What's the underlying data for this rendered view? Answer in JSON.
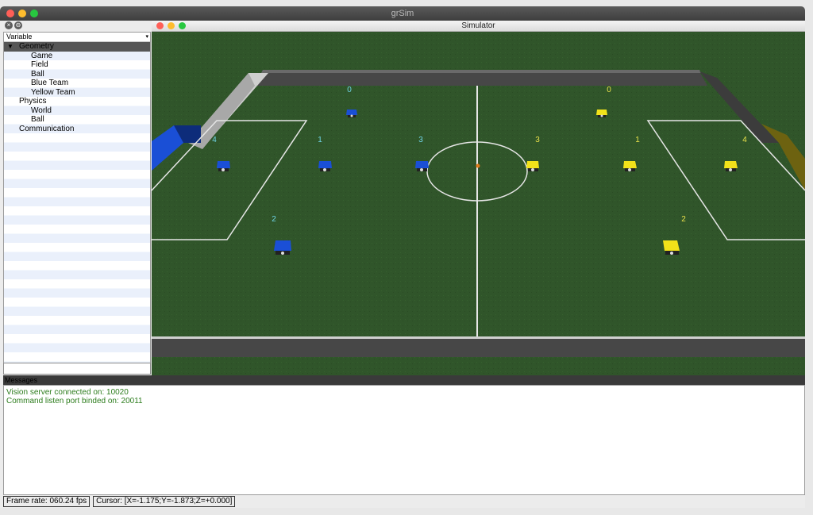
{
  "window": {
    "title": "grSim"
  },
  "tree": {
    "header": "Variable",
    "items": [
      {
        "label": "Geometry",
        "level": 0,
        "expanded": true,
        "selected": true
      },
      {
        "label": "Game",
        "level": 1
      },
      {
        "label": "Field",
        "level": 1
      },
      {
        "label": "Ball",
        "level": 1
      },
      {
        "label": "Blue Team",
        "level": 1
      },
      {
        "label": "Yellow Team",
        "level": 1
      },
      {
        "label": "Physics",
        "level": 0
      },
      {
        "label": "World",
        "level": 1
      },
      {
        "label": "Ball",
        "level": 1
      },
      {
        "label": "Communication",
        "level": 0
      }
    ]
  },
  "simulator": {
    "title": "Simulator",
    "colors": {
      "grass": "#2f5426",
      "blue": "#1a4fd6",
      "yellow": "#f2e21a",
      "wall": "#4a4a4a"
    },
    "blue_labels": [
      "0",
      "4",
      "1",
      "3",
      "2"
    ],
    "yellow_labels": [
      "0",
      "3",
      "1",
      "4",
      "2"
    ]
  },
  "messages": {
    "header": "Messages",
    "lines": [
      "Vision server connected on: 10020",
      "Command listen port binded on: 20011"
    ]
  },
  "status": {
    "frame_rate": "Frame rate: 060.24 fps",
    "cursor": "Cursor: [X=-1.175;Y=-1.873;Z=+0.000]"
  }
}
